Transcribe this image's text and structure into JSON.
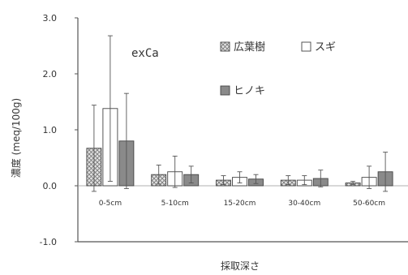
{
  "chart_data": {
    "type": "bar",
    "title": "",
    "annotation": "exCa",
    "xlabel": "採取深さ",
    "ylabel": "濃度 (meq/100g)",
    "ylim": [
      -1.0,
      3.0
    ],
    "yticks": [
      "-1.0",
      "0.0",
      "1.0",
      "2.0",
      "3.0"
    ],
    "categories": [
      "0-5cm",
      "5-10cm",
      "15-20cm",
      "30-40cm",
      "50-60cm"
    ],
    "legend_position": "top-right",
    "series": [
      {
        "name": "広葉樹",
        "pattern": "crosshatch",
        "color": "#cfcfcf",
        "values": [
          0.67,
          0.2,
          0.1,
          0.1,
          0.05
        ],
        "errors": [
          0.77,
          0.17,
          0.08,
          0.08,
          0.03
        ]
      },
      {
        "name": "スギ",
        "pattern": "solid",
        "color": "#ffffff",
        "values": [
          1.38,
          0.25,
          0.15,
          0.1,
          0.15
        ],
        "errors": [
          1.3,
          0.28,
          0.1,
          0.08,
          0.2
        ]
      },
      {
        "name": "ヒノキ",
        "pattern": "solid",
        "color": "#8a8a8a",
        "values": [
          0.8,
          0.2,
          0.12,
          0.13,
          0.25
        ],
        "errors": [
          0.85,
          0.15,
          0.08,
          0.15,
          0.35
        ]
      }
    ]
  }
}
